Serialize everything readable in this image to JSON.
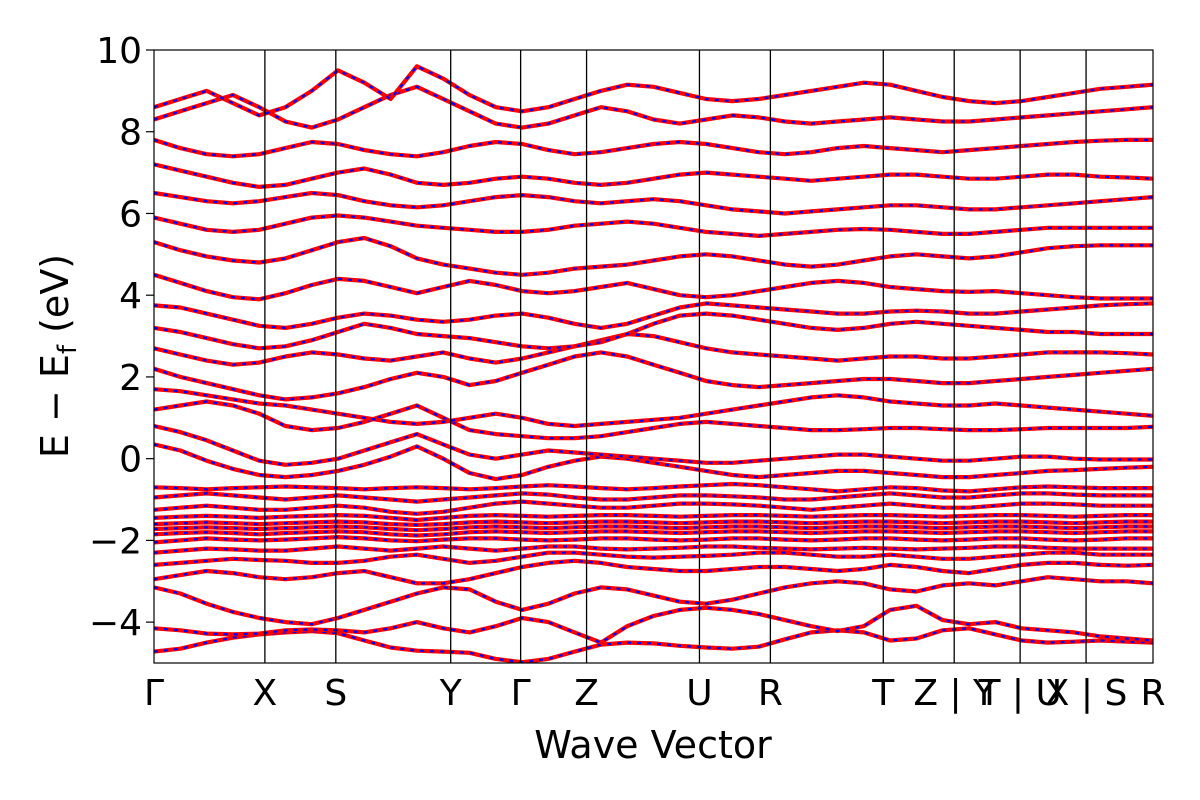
{
  "chart_data": {
    "type": "line",
    "title": "",
    "xlabel": "Wave Vector",
    "ylabel": "E − E_f (eV)",
    "ylabel_main": "E − E",
    "ylabel_sub": "f",
    "ylabel_unit": " (eV)",
    "ylim": [
      -5,
      10
    ],
    "yticks": [
      -4,
      -2,
      0,
      2,
      4,
      6,
      8,
      10
    ],
    "ytick_labels": [
      "−4",
      "−2",
      "0",
      "2",
      "4",
      "6",
      "8",
      "10"
    ],
    "xlim": [
      0,
      1
    ],
    "grid": false,
    "x_ticks": [
      {
        "label": "Γ",
        "pos": 0.0
      },
      {
        "label": "X",
        "pos": 0.111
      },
      {
        "label": "S",
        "pos": 0.182
      },
      {
        "label": "Y",
        "pos": 0.297
      },
      {
        "label": "Γ",
        "pos": 0.367
      },
      {
        "label": "Z",
        "pos": 0.433
      },
      {
        "label": "U",
        "pos": 0.546
      },
      {
        "label": "R",
        "pos": 0.617
      },
      {
        "label": "T",
        "pos": 0.73
      },
      {
        "label": "Z | Y",
        "pos": 0.801
      },
      {
        "label": "T | U",
        "pos": 0.867
      },
      {
        "label": "X | S",
        "pos": 0.933
      },
      {
        "label": "R",
        "pos": 1.0
      }
    ],
    "series_styles": [
      {
        "color": "#ff0000",
        "style": "solid"
      },
      {
        "color": "#0000ff",
        "style": "dashed"
      }
    ],
    "bands": [
      [
        -4.72,
        -4.65,
        -4.5,
        -4.38,
        -4.3,
        -4.25,
        -4.22,
        -4.27,
        -4.45,
        -4.62,
        -4.7,
        -4.72,
        -4.75,
        -4.9,
        -4.98,
        -4.9,
        -4.72,
        -4.55,
        -4.5,
        -4.52,
        -4.58,
        -4.62,
        -4.65,
        -4.6,
        -4.42,
        -4.25,
        -4.2,
        -4.25,
        -4.45,
        -4.4,
        -4.2,
        -4.15,
        -4.3,
        -4.45,
        -4.5,
        -4.48,
        -4.45,
        -4.48,
        -4.5
      ],
      [
        -4.15,
        -4.2,
        -4.28,
        -4.3,
        -4.28,
        -4.2,
        -4.18,
        -4.2,
        -4.25,
        -4.15,
        -4.0,
        -4.15,
        -4.25,
        -4.1,
        -3.9,
        -4.0,
        -4.25,
        -4.5,
        -4.1,
        -3.85,
        -3.7,
        -3.65,
        -3.7,
        -3.8,
        -3.95,
        -4.1,
        -4.22,
        -4.1,
        -3.7,
        -3.6,
        -3.95,
        -4.05,
        -4.0,
        -4.15,
        -4.2,
        -4.25,
        -4.35,
        -4.4,
        -4.45
      ],
      [
        -3.15,
        -3.3,
        -3.55,
        -3.75,
        -3.9,
        -4.0,
        -4.05,
        -3.9,
        -3.7,
        -3.5,
        -3.3,
        -3.15,
        -3.2,
        -3.5,
        -3.7,
        -3.55,
        -3.3,
        -3.15,
        -3.2,
        -3.35,
        -3.5,
        -3.55,
        -3.45,
        -3.3,
        -3.15,
        -3.05,
        -3.0,
        -3.05,
        -3.2,
        -3.25,
        -3.1,
        -3.05,
        -3.1,
        -3.0,
        -2.9,
        -2.95,
        -3.0,
        -3.0,
        -3.05
      ],
      [
        -2.95,
        -2.85,
        -2.75,
        -2.8,
        -2.9,
        -2.95,
        -2.9,
        -2.8,
        -2.75,
        -2.9,
        -3.05,
        -3.05,
        -2.95,
        -2.8,
        -2.65,
        -2.55,
        -2.5,
        -2.55,
        -2.65,
        -2.7,
        -2.75,
        -2.75,
        -2.7,
        -2.65,
        -2.65,
        -2.7,
        -2.75,
        -2.7,
        -2.6,
        -2.65,
        -2.75,
        -2.8,
        -2.7,
        -2.6,
        -2.55,
        -2.55,
        -2.6,
        -2.62,
        -2.6
      ],
      [
        -2.6,
        -2.55,
        -2.5,
        -2.45,
        -2.48,
        -2.5,
        -2.55,
        -2.55,
        -2.5,
        -2.4,
        -2.35,
        -2.45,
        -2.55,
        -2.5,
        -2.4,
        -2.3,
        -2.3,
        -2.35,
        -2.4,
        -2.42,
        -2.4,
        -2.38,
        -2.35,
        -2.3,
        -2.3,
        -2.35,
        -2.4,
        -2.4,
        -2.35,
        -2.4,
        -2.45,
        -2.45,
        -2.4,
        -2.35,
        -2.3,
        -2.3,
        -2.35,
        -2.35,
        -2.35
      ],
      [
        -2.3,
        -2.25,
        -2.2,
        -2.22,
        -2.25,
        -2.25,
        -2.2,
        -2.15,
        -2.2,
        -2.25,
        -2.2,
        -2.15,
        -2.2,
        -2.25,
        -2.2,
        -2.15,
        -2.15,
        -2.2,
        -2.22,
        -2.2,
        -2.18,
        -2.15,
        -2.15,
        -2.18,
        -2.2,
        -2.22,
        -2.2,
        -2.18,
        -2.2,
        -2.22,
        -2.2,
        -2.18,
        -2.15,
        -2.15,
        -2.18,
        -2.2,
        -2.2,
        -2.2,
        -2.2
      ],
      [
        -2.05,
        -2.0,
        -1.95,
        -1.98,
        -2.0,
        -1.98,
        -1.95,
        -1.92,
        -1.95,
        -2.0,
        -2.02,
        -1.98,
        -1.95,
        -1.95,
        -1.98,
        -2.0,
        -1.98,
        -1.95,
        -1.95,
        -1.98,
        -2.0,
        -1.98,
        -1.95,
        -1.95,
        -1.98,
        -2.0,
        -1.98,
        -1.95,
        -1.95,
        -1.98,
        -2.0,
        -1.98,
        -1.95,
        -1.95,
        -1.98,
        -2.0,
        -1.98,
        -1.95,
        -1.95
      ],
      [
        -1.85,
        -1.82,
        -1.8,
        -1.82,
        -1.85,
        -1.82,
        -1.8,
        -1.78,
        -1.8,
        -1.85,
        -1.88,
        -1.85,
        -1.8,
        -1.78,
        -1.8,
        -1.82,
        -1.8,
        -1.78,
        -1.78,
        -1.8,
        -1.82,
        -1.8,
        -1.78,
        -1.78,
        -1.8,
        -1.82,
        -1.8,
        -1.78,
        -1.78,
        -1.8,
        -1.82,
        -1.8,
        -1.78,
        -1.78,
        -1.8,
        -1.82,
        -1.8,
        -1.78,
        -1.78
      ],
      [
        -1.72,
        -1.7,
        -1.68,
        -1.7,
        -1.72,
        -1.7,
        -1.68,
        -1.66,
        -1.68,
        -1.72,
        -1.75,
        -1.72,
        -1.68,
        -1.66,
        -1.68,
        -1.7,
        -1.68,
        -1.66,
        -1.66,
        -1.68,
        -1.7,
        -1.68,
        -1.66,
        -1.66,
        -1.68,
        -1.7,
        -1.68,
        -1.66,
        -1.66,
        -1.68,
        -1.7,
        -1.68,
        -1.66,
        -1.66,
        -1.68,
        -1.7,
        -1.68,
        -1.66,
        -1.66
      ],
      [
        -1.6,
        -1.58,
        -1.56,
        -1.58,
        -1.6,
        -1.58,
        -1.56,
        -1.54,
        -1.56,
        -1.6,
        -1.62,
        -1.6,
        -1.56,
        -1.54,
        -1.56,
        -1.58,
        -1.56,
        -1.54,
        -1.54,
        -1.56,
        -1.58,
        -1.56,
        -1.54,
        -1.54,
        -1.56,
        -1.58,
        -1.56,
        -1.54,
        -1.54,
        -1.56,
        -1.58,
        -1.56,
        -1.54,
        -1.54,
        -1.56,
        -1.58,
        -1.56,
        -1.54,
        -1.54
      ],
      [
        -1.45,
        -1.42,
        -1.4,
        -1.42,
        -1.45,
        -1.42,
        -1.4,
        -1.38,
        -1.4,
        -1.45,
        -1.5,
        -1.45,
        -1.4,
        -1.38,
        -1.4,
        -1.42,
        -1.4,
        -1.38,
        -1.38,
        -1.4,
        -1.42,
        -1.4,
        -1.38,
        -1.38,
        -1.4,
        -1.42,
        -1.4,
        -1.38,
        -1.38,
        -1.4,
        -1.42,
        -1.4,
        -1.38,
        -1.38,
        -1.4,
        -1.42,
        -1.4,
        -1.38,
        -1.38
      ],
      [
        -1.25,
        -1.2,
        -1.15,
        -1.2,
        -1.25,
        -1.25,
        -1.2,
        -1.15,
        -1.2,
        -1.3,
        -1.35,
        -1.3,
        -1.2,
        -1.1,
        -1.05,
        -1.1,
        -1.15,
        -1.2,
        -1.2,
        -1.15,
        -1.1,
        -1.1,
        -1.12,
        -1.15,
        -1.2,
        -1.25,
        -1.2,
        -1.15,
        -1.1,
        -1.15,
        -1.2,
        -1.2,
        -1.15,
        -1.1,
        -1.1,
        -1.12,
        -1.15,
        -1.15,
        -1.15
      ],
      [
        -0.95,
        -0.9,
        -0.85,
        -0.9,
        -0.95,
        -1.0,
        -0.95,
        -0.9,
        -0.95,
        -1.0,
        -1.05,
        -1.0,
        -0.95,
        -0.9,
        -0.85,
        -0.88,
        -0.95,
        -1.0,
        -1.0,
        -0.95,
        -0.9,
        -0.9,
        -0.92,
        -0.95,
        -1.0,
        -1.0,
        -0.95,
        -0.9,
        -0.85,
        -0.9,
        -0.95,
        -0.95,
        -0.9,
        -0.85,
        -0.85,
        -0.88,
        -0.9,
        -0.9,
        -0.9
      ],
      [
        -0.7,
        -0.72,
        -0.75,
        -0.72,
        -0.7,
        -0.68,
        -0.7,
        -0.72,
        -0.75,
        -0.72,
        -0.7,
        -0.72,
        -0.75,
        -0.72,
        -0.68,
        -0.65,
        -0.68,
        -0.72,
        -0.75,
        -0.72,
        -0.68,
        -0.65,
        -0.62,
        -0.65,
        -0.7,
        -0.75,
        -0.8,
        -0.75,
        -0.7,
        -0.72,
        -0.78,
        -0.8,
        -0.75,
        -0.7,
        -0.68,
        -0.7,
        -0.72,
        -0.72,
        -0.72
      ],
      [
        0.35,
        0.2,
        -0.05,
        -0.25,
        -0.4,
        -0.45,
        -0.4,
        -0.3,
        -0.15,
        0.05,
        0.3,
        0.0,
        -0.35,
        -0.5,
        -0.4,
        -0.2,
        -0.05,
        0.05,
        0.0,
        -0.1,
        -0.2,
        -0.3,
        -0.4,
        -0.45,
        -0.4,
        -0.35,
        -0.3,
        -0.3,
        -0.35,
        -0.4,
        -0.45,
        -0.45,
        -0.4,
        -0.35,
        -0.3,
        -0.28,
        -0.25,
        -0.22,
        -0.2
      ],
      [
        0.8,
        0.65,
        0.45,
        0.2,
        -0.05,
        -0.15,
        -0.1,
        0.0,
        0.2,
        0.4,
        0.6,
        0.35,
        0.1,
        0.0,
        0.1,
        0.2,
        0.15,
        0.1,
        0.05,
        0.0,
        -0.05,
        -0.1,
        -0.1,
        -0.05,
        0.0,
        0.05,
        0.1,
        0.1,
        0.05,
        0.0,
        -0.05,
        -0.05,
        0.0,
        0.05,
        0.05,
        0.0,
        -0.02,
        -0.02,
        -0.02
      ],
      [
        1.2,
        1.3,
        1.4,
        1.3,
        1.1,
        0.8,
        0.7,
        0.75,
        0.9,
        1.1,
        1.3,
        1.0,
        0.7,
        0.6,
        0.55,
        0.5,
        0.5,
        0.55,
        0.65,
        0.75,
        0.85,
        0.9,
        0.85,
        0.8,
        0.75,
        0.7,
        0.7,
        0.72,
        0.75,
        0.75,
        0.72,
        0.7,
        0.7,
        0.72,
        0.75,
        0.75,
        0.75,
        0.75,
        0.78
      ],
      [
        1.7,
        1.65,
        1.55,
        1.45,
        1.35,
        1.3,
        1.2,
        1.1,
        1.0,
        0.9,
        0.85,
        0.9,
        1.0,
        1.1,
        1.0,
        0.85,
        0.8,
        0.85,
        0.9,
        0.95,
        1.0,
        1.1,
        1.2,
        1.3,
        1.4,
        1.5,
        1.55,
        1.5,
        1.4,
        1.35,
        1.3,
        1.3,
        1.35,
        1.3,
        1.25,
        1.2,
        1.15,
        1.1,
        1.05
      ],
      [
        2.2,
        2.0,
        1.85,
        1.7,
        1.55,
        1.45,
        1.5,
        1.6,
        1.75,
        1.95,
        2.1,
        2.0,
        1.8,
        1.9,
        2.1,
        2.3,
        2.5,
        2.6,
        2.5,
        2.3,
        2.1,
        1.9,
        1.8,
        1.75,
        1.8,
        1.85,
        1.9,
        1.95,
        1.95,
        1.9,
        1.85,
        1.85,
        1.9,
        1.95,
        2.0,
        2.05,
        2.1,
        2.15,
        2.2
      ],
      [
        2.7,
        2.55,
        2.4,
        2.3,
        2.35,
        2.5,
        2.6,
        2.55,
        2.45,
        2.4,
        2.5,
        2.6,
        2.45,
        2.35,
        2.45,
        2.6,
        2.75,
        2.9,
        3.05,
        3.0,
        2.85,
        2.7,
        2.6,
        2.55,
        2.5,
        2.45,
        2.4,
        2.45,
        2.5,
        2.5,
        2.45,
        2.45,
        2.5,
        2.55,
        2.6,
        2.6,
        2.6,
        2.58,
        2.55
      ],
      [
        3.2,
        3.1,
        2.95,
        2.8,
        2.7,
        2.75,
        2.9,
        3.1,
        3.3,
        3.2,
        3.05,
        3.0,
        2.95,
        2.85,
        2.75,
        2.7,
        2.75,
        2.85,
        3.05,
        3.3,
        3.5,
        3.55,
        3.5,
        3.4,
        3.3,
        3.2,
        3.15,
        3.2,
        3.3,
        3.35,
        3.3,
        3.25,
        3.2,
        3.15,
        3.1,
        3.1,
        3.05,
        3.05,
        3.05
      ],
      [
        3.75,
        3.7,
        3.55,
        3.4,
        3.25,
        3.2,
        3.3,
        3.45,
        3.55,
        3.5,
        3.4,
        3.35,
        3.4,
        3.5,
        3.55,
        3.45,
        3.3,
        3.2,
        3.3,
        3.5,
        3.7,
        3.8,
        3.75,
        3.7,
        3.65,
        3.6,
        3.55,
        3.55,
        3.6,
        3.62,
        3.6,
        3.55,
        3.55,
        3.6,
        3.65,
        3.7,
        3.75,
        3.78,
        3.8
      ],
      [
        4.5,
        4.3,
        4.1,
        3.95,
        3.9,
        4.05,
        4.25,
        4.4,
        4.35,
        4.2,
        4.05,
        4.2,
        4.35,
        4.25,
        4.1,
        4.05,
        4.1,
        4.2,
        4.3,
        4.15,
        4.0,
        3.95,
        4.0,
        4.1,
        4.2,
        4.3,
        4.35,
        4.3,
        4.2,
        4.15,
        4.1,
        4.08,
        4.1,
        4.05,
        4.0,
        3.95,
        3.92,
        3.92,
        3.92
      ],
      [
        5.3,
        5.1,
        4.95,
        4.85,
        4.8,
        4.9,
        5.1,
        5.3,
        5.4,
        5.2,
        4.9,
        4.75,
        4.65,
        4.55,
        4.5,
        4.55,
        4.65,
        4.7,
        4.75,
        4.85,
        4.95,
        5.0,
        4.95,
        4.85,
        4.75,
        4.7,
        4.75,
        4.85,
        4.95,
        5.0,
        4.95,
        4.9,
        4.95,
        5.05,
        5.15,
        5.2,
        5.22,
        5.22,
        5.22
      ],
      [
        5.9,
        5.75,
        5.6,
        5.55,
        5.6,
        5.75,
        5.9,
        5.95,
        5.9,
        5.8,
        5.7,
        5.65,
        5.6,
        5.55,
        5.55,
        5.6,
        5.7,
        5.75,
        5.8,
        5.75,
        5.65,
        5.55,
        5.5,
        5.45,
        5.5,
        5.55,
        5.6,
        5.62,
        5.6,
        5.55,
        5.5,
        5.5,
        5.55,
        5.6,
        5.65,
        5.65,
        5.65,
        5.65,
        5.65
      ],
      [
        6.5,
        6.4,
        6.3,
        6.25,
        6.3,
        6.4,
        6.5,
        6.45,
        6.3,
        6.2,
        6.15,
        6.2,
        6.3,
        6.4,
        6.45,
        6.4,
        6.3,
        6.25,
        6.3,
        6.35,
        6.3,
        6.2,
        6.1,
        6.05,
        6.0,
        6.05,
        6.1,
        6.15,
        6.2,
        6.2,
        6.15,
        6.1,
        6.1,
        6.15,
        6.2,
        6.25,
        6.3,
        6.35,
        6.4
      ],
      [
        7.2,
        7.05,
        6.9,
        6.75,
        6.65,
        6.7,
        6.85,
        7.0,
        7.1,
        6.95,
        6.75,
        6.7,
        6.75,
        6.85,
        6.9,
        6.85,
        6.75,
        6.7,
        6.75,
        6.85,
        6.95,
        7.0,
        6.95,
        6.9,
        6.85,
        6.8,
        6.85,
        6.9,
        6.95,
        6.95,
        6.9,
        6.85,
        6.85,
        6.9,
        6.95,
        6.95,
        6.9,
        6.88,
        6.85
      ],
      [
        7.8,
        7.6,
        7.45,
        7.4,
        7.45,
        7.6,
        7.75,
        7.7,
        7.55,
        7.45,
        7.4,
        7.5,
        7.65,
        7.75,
        7.7,
        7.55,
        7.45,
        7.5,
        7.6,
        7.7,
        7.75,
        7.7,
        7.6,
        7.5,
        7.45,
        7.5,
        7.6,
        7.65,
        7.6,
        7.55,
        7.5,
        7.55,
        7.6,
        7.65,
        7.7,
        7.75,
        7.78,
        7.8,
        7.8
      ],
      [
        8.3,
        8.5,
        8.7,
        8.9,
        8.6,
        8.25,
        8.1,
        8.3,
        8.6,
        8.9,
        9.1,
        8.8,
        8.5,
        8.2,
        8.1,
        8.2,
        8.4,
        8.6,
        8.5,
        8.3,
        8.2,
        8.3,
        8.4,
        8.35,
        8.25,
        8.2,
        8.25,
        8.3,
        8.35,
        8.3,
        8.25,
        8.25,
        8.3,
        8.35,
        8.4,
        8.45,
        8.5,
        8.55,
        8.6
      ],
      [
        8.6,
        8.8,
        9.0,
        8.7,
        8.4,
        8.6,
        9.0,
        9.5,
        9.2,
        8.8,
        9.6,
        9.3,
        8.9,
        8.6,
        8.5,
        8.6,
        8.8,
        9.0,
        9.15,
        9.1,
        8.95,
        8.8,
        8.75,
        8.8,
        8.9,
        9.0,
        9.1,
        9.2,
        9.15,
        9.0,
        8.85,
        8.75,
        8.7,
        8.75,
        8.85,
        8.95,
        9.05,
        9.1,
        9.15
      ]
    ]
  }
}
